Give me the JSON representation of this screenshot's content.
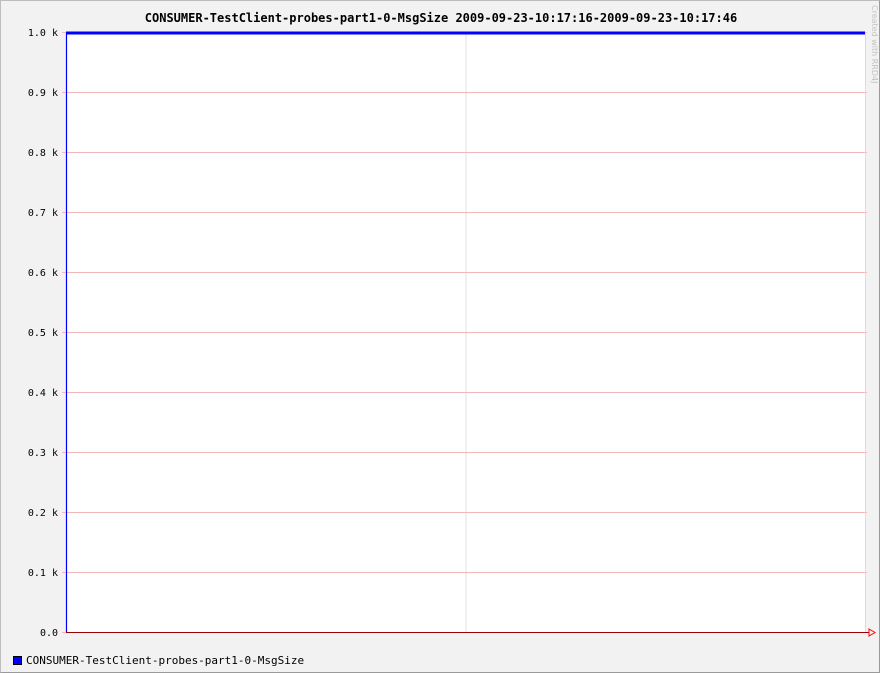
{
  "chart_data": {
    "type": "line",
    "title": "CONSUMER-TestClient-probes-part1-0-MsgSize 2009-09-23-10:17:16-2009-09-23-10:17:46",
    "xlabel": "",
    "ylabel": "",
    "ylim": [
      0,
      1000
    ],
    "y_ticks": [
      {
        "value": 0,
        "label": "0.0"
      },
      {
        "value": 100,
        "label": "0.1 k"
      },
      {
        "value": 200,
        "label": "0.2 k"
      },
      {
        "value": 300,
        "label": "0.3 k"
      },
      {
        "value": 400,
        "label": "0.4 k"
      },
      {
        "value": 500,
        "label": "0.5 k"
      },
      {
        "value": 600,
        "label": "0.6 k"
      },
      {
        "value": 700,
        "label": "0.7 k"
      },
      {
        "value": 800,
        "label": "0.8 k"
      },
      {
        "value": 900,
        "label": "0.9 k"
      },
      {
        "value": 1000,
        "label": "1.0 k"
      }
    ],
    "x_range": [
      "2009-09-23 10:17:16",
      "2009-09-23 10:17:46"
    ],
    "x_gridlines": [
      "2009-09-23 10:17:31"
    ],
    "grid": true,
    "legend": "bottom-left",
    "series": [
      {
        "name": "CONSUMER-TestClient-probes-part1-0-MsgSize",
        "color": "#0000ff",
        "x": [
          "2009-09-23 10:17:16",
          "2009-09-23 10:17:46"
        ],
        "values": [
          1000,
          1000
        ]
      }
    ]
  },
  "watermark": "Created with RRD4J",
  "colors": {
    "background": "#f2f2f2",
    "plot_area": "#ffffff",
    "major_grid": "#f2b8b8",
    "minor_grid": "#e0e0e0",
    "axis": "#990000",
    "series": "#0000ff"
  }
}
